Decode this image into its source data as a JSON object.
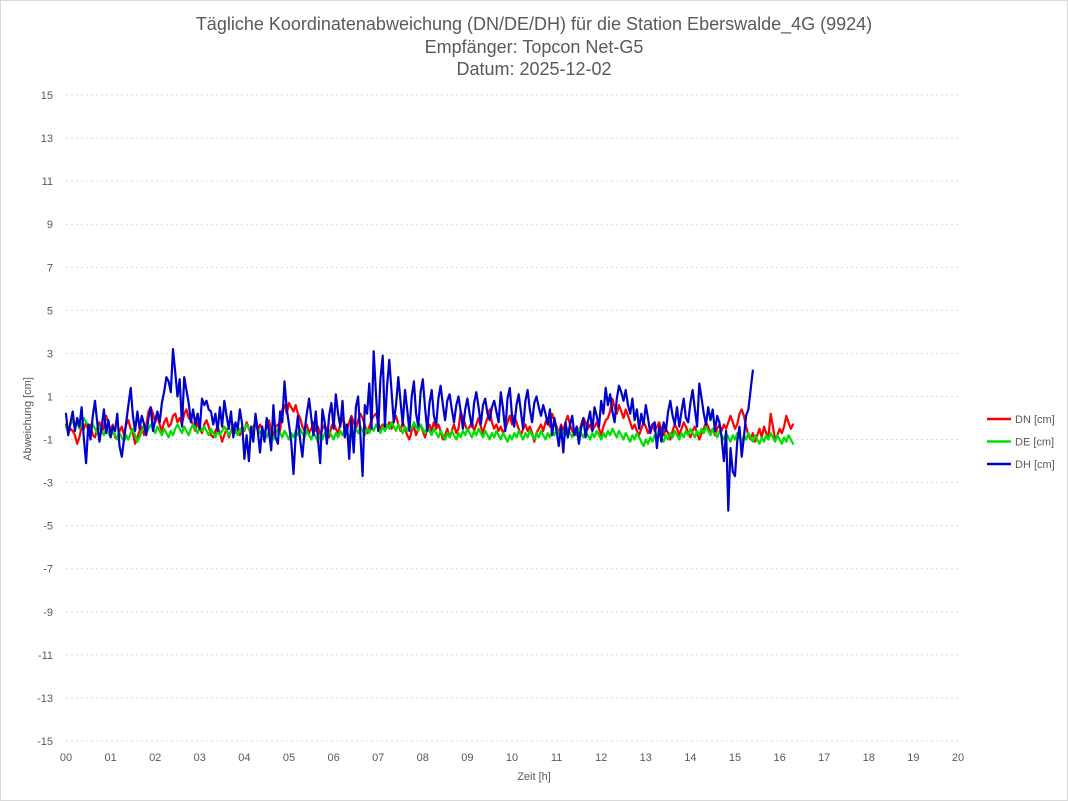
{
  "chart_data": {
    "type": "line",
    "title": [
      "Tägliche Koordinatenabweichung (DN/DE/DH) für die Station Eberswalde_4G (9924)",
      "Empfänger: Topcon Net-G5",
      "Datum: 2025-12-02"
    ],
    "xlabel": "Zeit [h]",
    "ylabel": "Abweichung [cm]",
    "xlim": [
      0,
      20
    ],
    "ylim": [
      -15,
      15
    ],
    "x_ticks": [
      "00",
      "01",
      "02",
      "03",
      "04",
      "05",
      "06",
      "07",
      "08",
      "09",
      "10",
      "11",
      "12",
      "13",
      "14",
      "15",
      "16",
      "17",
      "18",
      "19",
      "20"
    ],
    "y_ticks": [
      "15",
      "13",
      "11",
      "9",
      "7",
      "5",
      "3",
      "1",
      "-1",
      "-3",
      "-5",
      "-7",
      "-9",
      "-11",
      "-13",
      "-15"
    ],
    "legend_position": "right",
    "grid": true,
    "x_step_hours": 0.05,
    "series": [
      {
        "name": "DN [cm]",
        "color": "#ff0000",
        "values": [
          -0.3,
          -0.7,
          -0.5,
          -0.6,
          -0.8,
          -1.2,
          -0.9,
          -0.4,
          -0.5,
          -0.2,
          -0.6,
          -0.3,
          -0.8,
          -0.9,
          -0.5,
          -0.2,
          -0.7,
          -0.4,
          0.1,
          -0.2,
          -0.6,
          -0.3,
          -0.9,
          -1.0,
          -0.6,
          -0.4,
          -0.8,
          -0.3,
          -0.1,
          -0.5,
          -0.7,
          -1.2,
          -0.9,
          -0.6,
          -0.4,
          -0.8,
          -0.3,
          0.3,
          0.5,
          0.2,
          -0.2,
          0.1,
          -0.3,
          -0.6,
          -0.2,
          0.0,
          -0.4,
          -0.3,
          0.1,
          0.2,
          -0.2,
          0.0,
          -0.3,
          0.2,
          0.4,
          0.0,
          -0.1,
          -0.3,
          -0.6,
          -0.2,
          -0.5,
          -0.7,
          -0.3,
          -0.1,
          -0.4,
          -0.8,
          -0.9,
          -0.6,
          -0.4,
          -0.7,
          -1.1,
          -0.8,
          -0.5,
          -0.9,
          -0.6,
          -0.3,
          -0.7,
          -0.5,
          -0.8,
          -0.4,
          -0.6,
          -0.2,
          -0.5,
          -0.8,
          -0.4,
          -0.2,
          -0.6,
          -0.3,
          -0.5,
          -0.7,
          -0.4,
          -0.1,
          -0.6,
          -0.8,
          -0.4,
          -0.3,
          -0.6,
          0.4,
          0.6,
          0.2,
          0.7,
          0.5,
          0.3,
          0.6,
          0.2,
          0.0,
          -0.4,
          -0.6,
          -0.3,
          -0.7,
          -0.5,
          -0.2,
          -0.6,
          -0.4,
          -0.8,
          -0.5,
          -0.3,
          -0.6,
          -0.9,
          -0.4,
          -0.2,
          -0.5,
          -0.7,
          -0.3,
          0.0,
          -0.3,
          -0.6,
          -0.2,
          0.1,
          -0.2,
          -0.5,
          -0.1,
          0.2,
          0.0,
          -0.3,
          -0.7,
          -0.4,
          -0.1,
          0.1,
          0.2,
          -0.2,
          -0.5,
          -0.3,
          -0.6,
          -0.4,
          -0.2,
          -0.5,
          -0.1,
          0.1,
          -0.3,
          -0.6,
          -0.2,
          -0.5,
          -0.8,
          -1.0,
          -0.6,
          -0.4,
          -0.8,
          -0.5,
          -0.3,
          -0.6,
          -0.9,
          -0.5,
          -0.3,
          -0.6,
          -0.2,
          -0.5,
          -0.3,
          -0.6,
          -1.0,
          -0.8,
          -0.5,
          -0.9,
          -0.6,
          -0.3,
          -0.7,
          -0.5,
          0.3,
          0.0,
          -0.3,
          -0.6,
          -0.4,
          -0.2,
          -0.6,
          -0.3,
          0.0,
          -0.4,
          -0.7,
          -0.3,
          0.0,
          0.4,
          -0.2,
          -0.5,
          -0.3,
          -0.6,
          -0.4,
          -0.7,
          -0.5,
          -0.2,
          0.1,
          -0.3,
          0.1,
          -0.2,
          -0.5,
          -0.8,
          -0.5,
          -0.3,
          -0.6,
          -0.4,
          -0.7,
          -1.1,
          -0.7,
          -0.5,
          -0.3,
          -0.6,
          -0.2,
          0.0,
          -0.4,
          0.2,
          -0.1,
          -0.4,
          -0.7,
          -0.3,
          -0.6,
          -0.2,
          0.1,
          -0.3,
          -0.6,
          -0.8,
          -0.4,
          -0.7,
          -0.3,
          0.0,
          -0.2,
          -0.5,
          -0.3,
          -0.6,
          -0.4,
          -0.2,
          -0.5,
          -0.8,
          -0.4,
          -0.1,
          0.0,
          0.3,
          0.9,
          0.5,
          0.2,
          0.6,
          0.3,
          0.0,
          0.4,
          0.1,
          -0.2,
          -0.5,
          -0.3,
          -0.6,
          -0.8,
          -0.5,
          -0.2,
          -0.4,
          -0.7,
          -0.5,
          -0.3,
          -0.6,
          -0.4,
          -0.2,
          -0.5,
          -0.8,
          -0.5,
          -0.7,
          -1.0,
          -0.6,
          -0.3,
          -0.5,
          -0.8,
          -0.5,
          -0.2,
          -0.4,
          -0.7,
          -0.9,
          -0.6,
          -0.4,
          -0.7,
          -1.0,
          -0.7,
          -0.5,
          -0.2,
          -0.4,
          -0.7,
          -0.5,
          -0.8,
          -0.5,
          -0.3,
          -0.6,
          -0.3,
          -0.5,
          -0.2,
          0.1,
          -0.2,
          -0.5,
          -0.3,
          0.2,
          0.4,
          0.1,
          -0.4,
          -0.8,
          -1.0,
          -0.7,
          -1.1,
          -0.8,
          -0.5,
          -0.9,
          -0.4,
          -0.7,
          -0.9,
          0.2,
          -0.4,
          -1.0,
          -0.8,
          -0.5,
          -0.7,
          -0.4,
          0.1,
          -0.2,
          -0.5,
          -0.3
        ]
      },
      {
        "name": "DE [cm]",
        "color": "#00e000",
        "values": [
          -0.4,
          -0.6,
          -0.3,
          -0.1,
          -0.4,
          -0.2,
          -0.5,
          -0.3,
          0.0,
          -0.2,
          -0.4,
          -0.6,
          -0.3,
          -0.5,
          -0.7,
          -0.4,
          -0.6,
          -0.8,
          -0.5,
          -0.7,
          -0.9,
          -0.6,
          -0.8,
          -1.0,
          -0.7,
          -0.9,
          -1.1,
          -0.8,
          -1.0,
          -0.7,
          -0.5,
          -0.8,
          -1.1,
          -0.9,
          -0.6,
          -0.4,
          -0.7,
          -0.5,
          -0.3,
          -0.5,
          -0.7,
          -0.4,
          -0.6,
          -0.8,
          -0.5,
          -0.7,
          -0.9,
          -0.6,
          -0.8,
          -0.5,
          -0.3,
          -0.5,
          -0.7,
          -0.4,
          -0.6,
          -0.8,
          -0.5,
          -0.3,
          -0.5,
          -0.7,
          -0.4,
          -0.6,
          -0.4,
          -0.6,
          -0.8,
          -0.5,
          -0.7,
          -0.9,
          -0.6,
          -0.8,
          -0.6,
          -0.4,
          -0.6,
          -0.8,
          -0.6,
          -0.4,
          -0.6,
          -0.8,
          -0.5,
          -0.7,
          -0.5,
          -0.3,
          -0.5,
          -0.7,
          -0.5,
          -0.3,
          -0.5,
          -0.7,
          -0.5,
          -0.7,
          -0.9,
          -0.6,
          -0.8,
          -1.0,
          -0.7,
          -0.5,
          -0.7,
          -0.9,
          -0.6,
          -0.8,
          -1.0,
          -0.7,
          -0.9,
          -0.6,
          -0.8,
          -0.5,
          -0.7,
          -0.9,
          -0.6,
          -0.8,
          -1.0,
          -0.7,
          -0.9,
          -1.1,
          -0.8,
          -1.0,
          -0.7,
          -0.9,
          -0.6,
          -0.8,
          -1.0,
          -0.7,
          -0.9,
          -0.6,
          -0.8,
          -0.5,
          -0.7,
          -0.9,
          -0.6,
          -0.8,
          -0.5,
          -0.7,
          -0.4,
          -0.6,
          -0.8,
          -0.5,
          -0.7,
          -0.4,
          -0.6,
          -0.3,
          -0.5,
          -0.7,
          -0.4,
          -0.6,
          -0.3,
          -0.5,
          -0.2,
          -0.4,
          -0.6,
          -0.3,
          -0.5,
          -0.7,
          -0.4,
          -0.6,
          -0.3,
          -0.5,
          -0.2,
          -0.4,
          -0.6,
          -0.3,
          -0.5,
          -0.7,
          -0.4,
          -0.6,
          -0.8,
          -0.5,
          -0.7,
          -0.9,
          -0.6,
          -0.8,
          -1.0,
          -0.7,
          -0.9,
          -0.6,
          -0.8,
          -1.0,
          -0.7,
          -0.9,
          -0.6,
          -0.8,
          -0.5,
          -0.7,
          -0.9,
          -0.6,
          -0.8,
          -0.5,
          -0.7,
          -0.9,
          -0.6,
          -0.8,
          -1.0,
          -0.7,
          -0.9,
          -0.6,
          -0.8,
          -1.0,
          -0.7,
          -0.9,
          -1.1,
          -0.8,
          -1.0,
          -0.7,
          -0.9,
          -0.6,
          -0.8,
          -1.0,
          -0.7,
          -0.9,
          -0.6,
          -0.8,
          -1.0,
          -0.7,
          -0.9,
          -0.6,
          -0.8,
          -1.0,
          -0.7,
          -0.9,
          -0.6,
          -0.8,
          -0.5,
          -0.7,
          -0.9,
          -0.6,
          -0.8,
          -0.5,
          -0.7,
          -0.9,
          -0.6,
          -0.8,
          -0.5,
          -0.7,
          -0.9,
          -0.6,
          -0.8,
          -1.0,
          -0.7,
          -0.9,
          -0.6,
          -0.8,
          -1.0,
          -0.7,
          -0.9,
          -0.6,
          -0.8,
          -0.5,
          -0.7,
          -0.9,
          -0.6,
          -0.8,
          -1.0,
          -0.7,
          -0.9,
          -1.1,
          -0.8,
          -1.0,
          -0.7,
          -0.9,
          -1.1,
          -1.3,
          -1.0,
          -1.2,
          -0.9,
          -1.1,
          -0.8,
          -1.0,
          -0.7,
          -0.9,
          -1.1,
          -0.8,
          -1.0,
          -0.7,
          -0.9,
          -0.6,
          -0.8,
          -1.0,
          -0.7,
          -0.9,
          -0.6,
          -0.8,
          -0.5,
          -0.7,
          -0.9,
          -0.6,
          -0.8,
          -0.5,
          -0.7,
          -0.4,
          -0.6,
          -0.8,
          -0.5,
          -0.7,
          -0.9,
          -0.6,
          -0.8,
          -1.0,
          -0.7,
          -0.9,
          -1.1,
          -0.8,
          -1.0,
          -0.7,
          -0.9,
          -1.1,
          -0.8,
          -1.0,
          -0.7,
          -0.9,
          -1.1,
          -0.8,
          -1.0,
          -1.2,
          -0.9,
          -1.1,
          -0.8,
          -1.0,
          -0.7,
          -0.9,
          -1.1,
          -0.8,
          -1.0,
          -1.2,
          -0.9,
          -1.1,
          -0.8,
          -1.0,
          -1.2
        ]
      },
      {
        "name": "DH [cm]",
        "color": "#0000cc",
        "values": [
          0.2,
          -0.8,
          -0.2,
          0.3,
          -0.6,
          0.0,
          -0.4,
          0.5,
          -0.9,
          -2.1,
          -0.3,
          -1.0,
          0.1,
          0.8,
          -0.2,
          -1.1,
          -0.4,
          0.4,
          -0.7,
          -0.1,
          -0.9,
          -0.4,
          -0.6,
          0.2,
          -1.3,
          -1.8,
          -1.0,
          -0.2,
          0.6,
          1.4,
          0.1,
          -0.6,
          0.3,
          -0.5,
          0.1,
          -0.3,
          -0.8,
          0.0,
          0.5,
          -0.6,
          -0.1,
          0.3,
          -0.2,
          0.7,
          1.2,
          1.9,
          1.7,
          1.2,
          3.2,
          2.1,
          1.0,
          1.8,
          -0.4,
          1.9,
          1.3,
          0.7,
          -0.2,
          0.4,
          -0.3,
          0.2,
          -0.5,
          0.9,
          0.6,
          0.8,
          0.4,
          0.3,
          -0.3,
          0.2,
          -0.6,
          0.5,
          -0.4,
          0.8,
          0.1,
          -0.5,
          0.3,
          -0.9,
          -0.2,
          -0.5,
          0.4,
          -0.3,
          -1.9,
          -0.8,
          -2.0,
          -0.4,
          -1.1,
          0.2,
          -0.6,
          -1.6,
          -0.4,
          -1.1,
          0.0,
          -0.6,
          -1.5,
          0.6,
          -0.9,
          -1.2,
          0.3,
          -0.2,
          1.7,
          0.4,
          -0.3,
          -1.1,
          -2.6,
          -0.8,
          0.1,
          -1.0,
          -1.8,
          -0.6,
          0.2,
          0.9,
          0.0,
          -0.8,
          0.3,
          -1.0,
          -2.1,
          0.4,
          -0.2,
          -1.2,
          0.1,
          0.7,
          -0.5,
          1.1,
          0.2,
          -0.4,
          0.8,
          -0.9,
          -0.3,
          -1.9,
          0.0,
          -1.6,
          0.5,
          1.0,
          -0.8,
          -2.7,
          0.6,
          0.2,
          1.6,
          -0.5,
          3.1,
          1.1,
          -0.6,
          1.8,
          2.9,
          -0.4,
          1.5,
          2.7,
          1.2,
          -0.2,
          0.6,
          1.9,
          0.8,
          -0.3,
          1.3,
          0.4,
          -0.6,
          1.0,
          1.7,
          0.2,
          -0.4,
          1.2,
          1.8,
          0.5,
          -0.6,
          0.7,
          1.3,
          0.1,
          -0.3,
          0.9,
          1.5,
          0.6,
          -0.1,
          0.8,
          1.1,
          0.4,
          -0.2,
          0.6,
          1.0,
          0.3,
          -0.5,
          0.4,
          0.9,
          0.2,
          -0.4,
          0.7,
          1.2,
          0.5,
          -0.3,
          0.6,
          0.9,
          0.2,
          -0.1,
          0.5,
          0.8,
          0.3,
          -0.2,
          1.2,
          0.4,
          -0.6,
          0.9,
          1.4,
          0.1,
          -0.4,
          0.6,
          1.1,
          0.3,
          -0.5,
          0.8,
          1.3,
          0.4,
          -0.2,
          0.7,
          1.0,
          0.5,
          0.1,
          0.6,
          0.2,
          -0.3,
          0.4,
          -0.8,
          0.0,
          -0.6,
          -1.3,
          -0.4,
          -1.6,
          -0.2,
          -0.9,
          -0.3,
          0.1,
          -0.8,
          -0.4,
          -1.2,
          -0.5,
          0.0,
          -0.9,
          -0.2,
          0.3,
          -0.6,
          0.5,
          0.1,
          -0.4,
          0.8,
          0.2,
          1.4,
          0.6,
          1.1,
          0.3,
          -0.2,
          0.9,
          1.5,
          1.2,
          0.8,
          1.3,
          0.6,
          0.2,
          0.9,
          -0.1,
          0.4,
          -0.5,
          0.2,
          -0.3,
          0.6,
          0.0,
          -0.7,
          -0.3,
          -0.2,
          -1.4,
          -0.4,
          -1.1,
          -0.2,
          -0.6,
          0.3,
          0.8,
          0.1,
          -0.3,
          0.5,
          -0.4,
          0.3,
          0.9,
          0.0,
          -0.2,
          0.7,
          1.3,
          0.4,
          -0.4,
          1.6,
          0.9,
          0.2,
          -0.3,
          0.5,
          -0.1,
          0.4,
          -0.6,
          0.1,
          -0.2,
          -0.9,
          -2.0,
          -0.6,
          -4.3,
          -1.4,
          -2.5,
          -2.7,
          -1.1,
          -0.4,
          -1.8,
          -0.9,
          0.1,
          0.4,
          1.3,
          2.2
        ]
      }
    ]
  }
}
